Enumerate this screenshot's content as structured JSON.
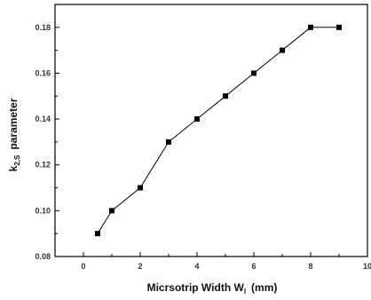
{
  "chart_data": {
    "type": "line",
    "title": "",
    "xlabel": {
      "main": "Micrsotrip Width W",
      "sub": "l",
      "unit": "(mm)"
    },
    "ylabel": {
      "prefix": "k",
      "sub": "2,S",
      "suffix": "parameter"
    },
    "xlim": [
      -1,
      10
    ],
    "ylim": [
      0.08,
      0.19
    ],
    "xticks": [
      0,
      2,
      4,
      6,
      8,
      10
    ],
    "xtick_labels": [
      "0",
      "2",
      "4",
      "6",
      "8",
      "10"
    ],
    "yticks": [
      0.08,
      0.1,
      0.12,
      0.14,
      0.16,
      0.18
    ],
    "ytick_labels": [
      "0.08",
      "0.10",
      "0.12",
      "0.14",
      "0.16",
      "0.18"
    ],
    "grid": false,
    "legend": "none",
    "series": [
      {
        "x": [
          0.5,
          1,
          2,
          3,
          4,
          5,
          6,
          7,
          8,
          9
        ],
        "y": [
          0.09,
          0.1,
          0.11,
          0.13,
          0.14,
          0.15,
          0.16,
          0.17,
          0.18,
          0.18
        ],
        "color": "#000000",
        "marker": "square"
      }
    ]
  }
}
